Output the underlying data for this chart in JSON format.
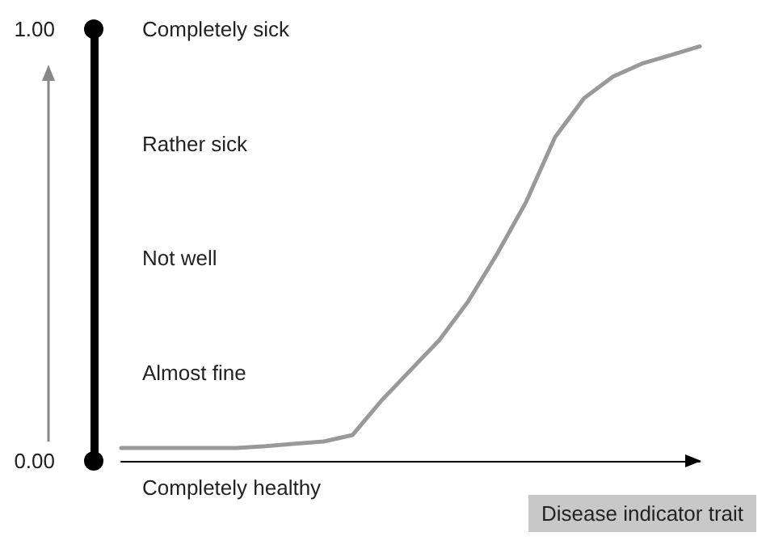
{
  "chart_data": {
    "type": "line",
    "xlabel": "Disease indicator trait",
    "categories": [
      null,
      null,
      null,
      null,
      null,
      null,
      null,
      null,
      null,
      null,
      null,
      null,
      null,
      null,
      null,
      null,
      null,
      null,
      null,
      null,
      null
    ],
    "series": [
      {
        "color": "#999999",
        "values": [
          0.03,
          0.03,
          0.03,
          0.03,
          0.03,
          0.034,
          0.04,
          0.045,
          0.06,
          0.14,
          0.21,
          0.28,
          0.37,
          0.48,
          0.6,
          0.75,
          0.84,
          0.89,
          0.92,
          0.94,
          0.96
        ]
      }
    ],
    "ylim": [
      0,
      1
    ],
    "yticks": [
      {
        "value": 0,
        "label": "0.00"
      },
      {
        "value": 1,
        "label": "1.00"
      }
    ],
    "annotations": [
      "Completely sick",
      "Rather sick",
      "Not well",
      "Almost fine",
      "Completely healthy"
    ],
    "marker": "none",
    "line_style": "solid",
    "grid": false
  }
}
